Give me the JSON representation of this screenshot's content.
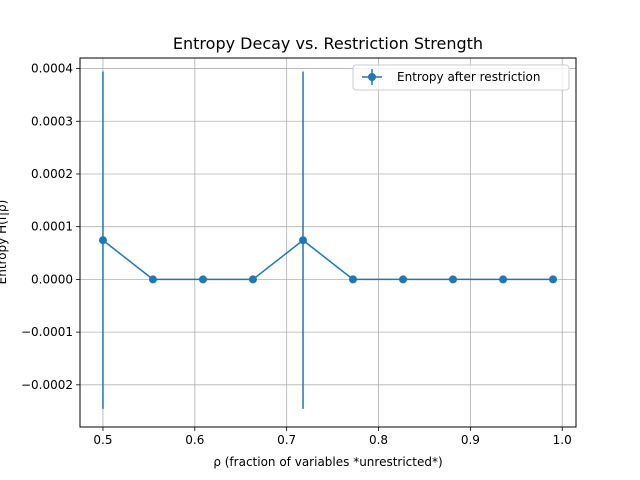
{
  "chart_data": {
    "type": "line",
    "title": "Entropy Decay vs. Restriction Strength",
    "xlabel": "ρ (fraction of variables *unrestricted*)",
    "ylabel": "Entropy H(f|ρ)",
    "xlim": [
      0.475,
      1.015
    ],
    "ylim": [
      -0.00028,
      0.00042
    ],
    "x_ticks": [
      0.5,
      0.6,
      0.7,
      0.8,
      0.9,
      1.0
    ],
    "x_tick_labels": [
      "0.5",
      "0.6",
      "0.7",
      "0.8",
      "0.9",
      "1.0"
    ],
    "y_ticks": [
      -0.0002,
      -0.0001,
      0.0,
      0.0001,
      0.0002,
      0.0003,
      0.0004
    ],
    "y_tick_labels": [
      "−0.0002",
      "−0.0001",
      "0.0000",
      "0.0001",
      "0.0002",
      "0.0003",
      "0.0004"
    ],
    "grid": true,
    "legend_position": "top-right",
    "series": [
      {
        "name": "Entropy after restriction",
        "color": "#1f77b4",
        "marker": "circle",
        "x": [
          0.5,
          0.5544,
          0.6089,
          0.6633,
          0.7178,
          0.7722,
          0.8267,
          0.8811,
          0.9356,
          0.99
        ],
        "y": [
          7.43e-05,
          0.0,
          0.0,
          0.0,
          7.43e-05,
          0.0,
          0.0,
          0.0,
          0.0,
          0.0
        ],
        "yerr": [
          0.00032,
          0.0,
          0.0,
          0.0,
          0.00032,
          0.0,
          0.0,
          0.0,
          0.0,
          0.0
        ]
      }
    ]
  }
}
